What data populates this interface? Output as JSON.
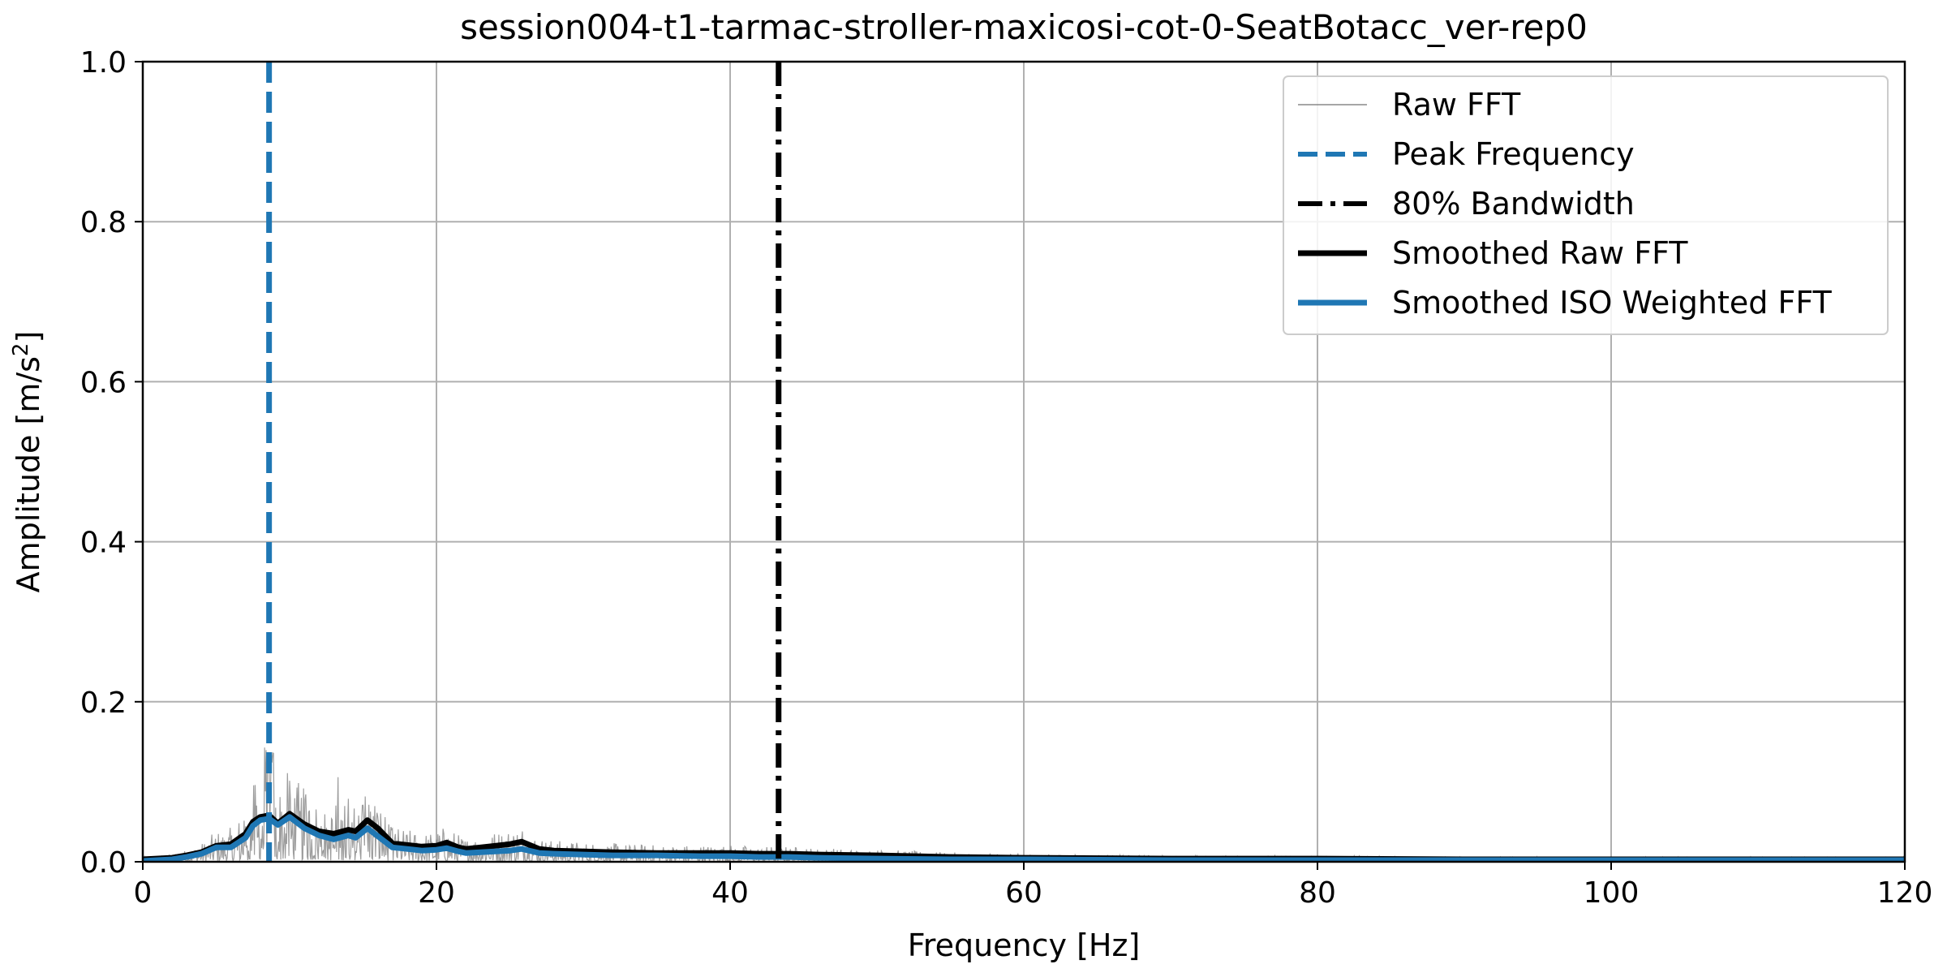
{
  "chart_data": {
    "type": "line",
    "title": "session004-t1-tarmac-stroller-maxicosi-cot-0-SeatBotacc_ver-rep0",
    "xlabel": "Frequency [Hz]",
    "ylabel_main": "Amplitude [m/s",
    "ylabel_sup": "2",
    "ylabel_close": "]",
    "xlim": [
      0,
      120
    ],
    "ylim": [
      0,
      1.0
    ],
    "xticks": [
      0,
      20,
      40,
      60,
      80,
      100,
      120
    ],
    "xtick_labels": [
      "0",
      "20",
      "40",
      "60",
      "80",
      "100",
      "120"
    ],
    "yticks": [
      0.0,
      0.2,
      0.4,
      0.6,
      0.8,
      1.0
    ],
    "ytick_labels": [
      "0.0",
      "0.2",
      "0.4",
      "0.6",
      "0.8",
      "1.0"
    ],
    "grid": true,
    "legend_position": "top-right",
    "peak_frequency": 8.6,
    "bandwidth_80": 43.3,
    "legend": [
      {
        "label": "Raw FFT",
        "style": "thin-gray"
      },
      {
        "label": "Peak Frequency",
        "style": "blue-dashed"
      },
      {
        "label": "80% Bandwidth",
        "style": "black-dashdot"
      },
      {
        "label": "Smoothed Raw FFT",
        "style": "black-thick"
      },
      {
        "label": "Smoothed ISO Weighted FFT",
        "style": "blue-thick"
      }
    ],
    "series": [
      {
        "name": "Smoothed Raw FFT",
        "color": "#000000",
        "x": [
          0,
          2,
          3,
          4,
          5,
          6,
          7,
          7.5,
          8,
          8.6,
          9.2,
          10,
          11,
          12,
          13,
          14,
          14.5,
          15.3,
          16,
          17,
          18,
          19,
          20,
          20.7,
          21.5,
          22,
          23,
          24,
          25,
          25.8,
          27,
          28,
          30,
          32,
          35,
          38,
          40,
          42,
          44,
          46,
          50,
          55,
          60,
          70,
          80,
          90,
          100,
          110,
          120
        ],
        "y": [
          0.003,
          0.005,
          0.008,
          0.012,
          0.02,
          0.022,
          0.035,
          0.05,
          0.056,
          0.058,
          0.048,
          0.06,
          0.047,
          0.038,
          0.035,
          0.04,
          0.038,
          0.052,
          0.042,
          0.023,
          0.021,
          0.019,
          0.02,
          0.024,
          0.018,
          0.016,
          0.018,
          0.02,
          0.022,
          0.025,
          0.016,
          0.014,
          0.013,
          0.012,
          0.011,
          0.011,
          0.011,
          0.01,
          0.01,
          0.009,
          0.008,
          0.006,
          0.005,
          0.004,
          0.004,
          0.003,
          0.003,
          0.003,
          0.003
        ]
      },
      {
        "name": "Smoothed ISO Weighted FFT",
        "color": "#1f77b4",
        "x": [
          0,
          2,
          3,
          4,
          5,
          6,
          7,
          7.5,
          8,
          8.6,
          9.2,
          10,
          11,
          12,
          13,
          14,
          14.5,
          15.3,
          16,
          17,
          18,
          19,
          20,
          20.7,
          21.5,
          22,
          23,
          24,
          25,
          25.8,
          27,
          28,
          30,
          32,
          35,
          38,
          40,
          42,
          44,
          46,
          50,
          55,
          60,
          70,
          80,
          90,
          100,
          110,
          120
        ],
        "y": [
          0.001,
          0.003,
          0.006,
          0.01,
          0.018,
          0.018,
          0.03,
          0.045,
          0.052,
          0.054,
          0.046,
          0.056,
          0.042,
          0.033,
          0.028,
          0.033,
          0.03,
          0.042,
          0.032,
          0.018,
          0.016,
          0.014,
          0.015,
          0.017,
          0.013,
          0.011,
          0.012,
          0.013,
          0.014,
          0.016,
          0.011,
          0.01,
          0.009,
          0.008,
          0.008,
          0.007,
          0.007,
          0.006,
          0.006,
          0.005,
          0.004,
          0.003,
          0.003,
          0.002,
          0.002,
          0.002,
          0.002,
          0.002,
          0.002
        ]
      }
    ]
  }
}
